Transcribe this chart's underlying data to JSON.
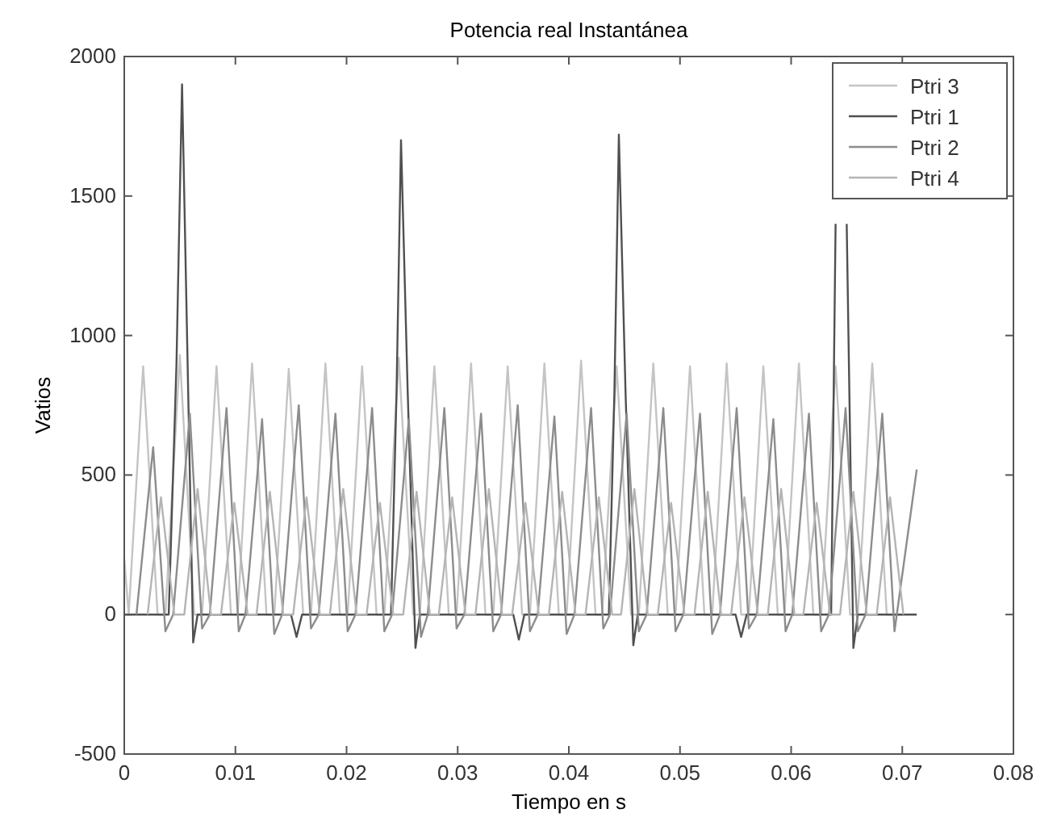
{
  "chart_data": {
    "type": "line",
    "title": "Potencia real Instantánea",
    "xlabel": "Tiempo en s",
    "ylabel": "Vatios",
    "xlim": [
      0,
      0.08
    ],
    "xticks": [
      0,
      0.01,
      0.02,
      0.03,
      0.04,
      0.05,
      0.06,
      0.07,
      0.08
    ],
    "ylim": [
      -500,
      2000
    ],
    "yticks": [
      -500,
      0,
      500,
      1000,
      1500,
      2000
    ],
    "grid": false,
    "legend": "top right",
    "series": [
      {
        "name": "Ptri 3",
        "color": "#c4c4c4",
        "x": [
          0,
          0.0004,
          0.0017,
          0.003,
          0.0037,
          0.005,
          0.0063,
          0.007,
          0.0083,
          0.0096,
          0.0102,
          0.0115,
          0.0128,
          0.0135,
          0.0148,
          0.0161,
          0.0168,
          0.0181,
          0.0194,
          0.0201,
          0.0214,
          0.0227,
          0.0234,
          0.0247,
          0.026,
          0.0266,
          0.0279,
          0.0292,
          0.0299,
          0.0312,
          0.0325,
          0.0332,
          0.0345,
          0.0358,
          0.0365,
          0.0378,
          0.0391,
          0.0398,
          0.0411,
          0.0424,
          0.043,
          0.0443,
          0.0456,
          0.0463,
          0.0476,
          0.0489,
          0.0496,
          0.0509,
          0.0522,
          0.0529,
          0.0542,
          0.0555,
          0.0562,
          0.0575,
          0.0588,
          0.0594,
          0.0607,
          0.062,
          0.0627,
          0.064,
          0.0653,
          0.066,
          0.0673,
          0.0686,
          0.07
        ],
        "values": [
          200,
          0,
          890,
          0,
          0,
          930,
          0,
          0,
          890,
          0,
          0,
          900,
          0,
          0,
          880,
          0,
          0,
          900,
          0,
          0,
          890,
          0,
          0,
          920,
          0,
          0,
          890,
          0,
          0,
          900,
          0,
          0,
          890,
          0,
          0,
          900,
          0,
          0,
          910,
          0,
          0,
          890,
          0,
          0,
          900,
          0,
          0,
          890,
          0,
          0,
          900,
          0,
          0,
          890,
          0,
          0,
          900,
          0,
          0,
          890,
          0,
          0,
          900,
          0,
          0
        ]
      },
      {
        "name": "Ptri 1",
        "color": "#505050",
        "x": [
          0,
          0.004,
          0.0047,
          0.0052,
          0.0057,
          0.0062,
          0.0066,
          0.015,
          0.0155,
          0.016,
          0.024,
          0.0245,
          0.0249,
          0.0255,
          0.0262,
          0.0266,
          0.035,
          0.0355,
          0.036,
          0.0436,
          0.0441,
          0.0445,
          0.0451,
          0.0458,
          0.0462,
          0.055,
          0.0555,
          0.056,
          0.0636,
          0.064,
          0.0645,
          0.065,
          0.0656,
          0.066,
          0.0713
        ],
        "values": [
          0,
          0,
          900,
          1900,
          900,
          -100,
          0,
          0,
          -80,
          0,
          0,
          800,
          1700,
          800,
          -120,
          0,
          0,
          -90,
          0,
          0,
          800,
          1720,
          800,
          -110,
          0,
          0,
          -80,
          0,
          0,
          1400,
          null,
          1400,
          -120,
          0,
          0
        ]
      },
      {
        "name": "Ptri 2",
        "color": "#8c8c8c",
        "x": [
          0.0011,
          0.0026,
          0.0037,
          0.0044,
          0.0059,
          0.007,
          0.0077,
          0.0092,
          0.0103,
          0.0109,
          0.0124,
          0.0135,
          0.0142,
          0.0157,
          0.0168,
          0.0175,
          0.019,
          0.0201,
          0.0208,
          0.0223,
          0.0234,
          0.0241,
          0.0256,
          0.0267,
          0.0273,
          0.0288,
          0.0299,
          0.0306,
          0.0321,
          0.0332,
          0.0339,
          0.0354,
          0.0365,
          0.0372,
          0.0387,
          0.0398,
          0.0405,
          0.042,
          0.0431,
          0.0437,
          0.0452,
          0.0463,
          0.047,
          0.0485,
          0.0496,
          0.0503,
          0.0518,
          0.0529,
          0.0536,
          0.0551,
          0.0562,
          0.0569,
          0.0584,
          0.0595,
          0.0601,
          0.0616,
          0.0627,
          0.0634,
          0.0649,
          0.066,
          0.0667,
          0.0682,
          0.0693,
          0.0713
        ],
        "values": [
          0,
          600,
          -60,
          0,
          720,
          -50,
          0,
          740,
          -60,
          0,
          700,
          -70,
          0,
          750,
          -50,
          0,
          720,
          -60,
          0,
          740,
          -60,
          0,
          700,
          -80,
          0,
          740,
          -50,
          0,
          720,
          -60,
          0,
          750,
          -60,
          0,
          710,
          -70,
          0,
          740,
          -50,
          0,
          720,
          -60,
          0,
          740,
          -60,
          0,
          720,
          -70,
          0,
          740,
          -50,
          0,
          700,
          -60,
          0,
          720,
          -60,
          0,
          740,
          -60,
          0,
          720,
          -60,
          520
        ]
      },
      {
        "name": "Ptri 4",
        "color": "#b4b4b4",
        "x": [
          0.0021,
          0.0033,
          0.0045,
          0.0054,
          0.0066,
          0.0078,
          0.0087,
          0.0099,
          0.0111,
          0.0119,
          0.0131,
          0.0143,
          0.0152,
          0.0164,
          0.0176,
          0.0185,
          0.0197,
          0.0209,
          0.0218,
          0.023,
          0.0242,
          0.0251,
          0.0263,
          0.0275,
          0.0283,
          0.0295,
          0.0307,
          0.0316,
          0.0328,
          0.034,
          0.0349,
          0.0361,
          0.0373,
          0.0382,
          0.0394,
          0.0406,
          0.0415,
          0.0427,
          0.0439,
          0.0447,
          0.0459,
          0.0471,
          0.048,
          0.0492,
          0.0504,
          0.0513,
          0.0525,
          0.0537,
          0.0546,
          0.0558,
          0.057,
          0.0579,
          0.0591,
          0.0603,
          0.0611,
          0.0623,
          0.0635,
          0.0644,
          0.0656,
          0.0668,
          0.0677,
          0.0689,
          0.0701
        ],
        "values": [
          0,
          420,
          0,
          0,
          450,
          0,
          0,
          400,
          0,
          0,
          440,
          0,
          0,
          420,
          0,
          0,
          450,
          0,
          0,
          400,
          0,
          0,
          440,
          0,
          0,
          420,
          0,
          0,
          450,
          0,
          0,
          400,
          0,
          0,
          440,
          0,
          0,
          420,
          0,
          0,
          450,
          0,
          0,
          400,
          0,
          0,
          440,
          0,
          0,
          420,
          0,
          0,
          450,
          0,
          0,
          400,
          0,
          0,
          440,
          0,
          0,
          420,
          0
        ]
      }
    ]
  }
}
